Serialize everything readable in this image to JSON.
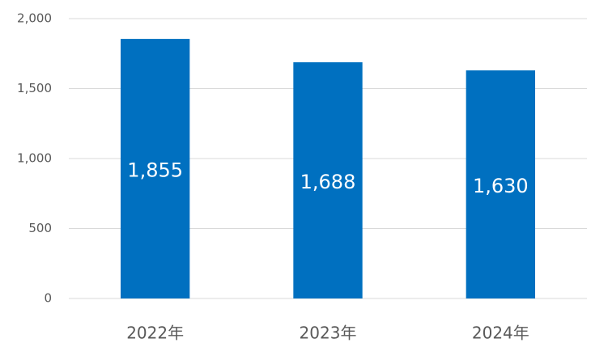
{
  "chart_data": {
    "type": "bar",
    "categories": [
      "2022年",
      "2023年",
      "2024年"
    ],
    "values": [
      1855,
      1688,
      1630
    ],
    "value_labels": [
      "1,855",
      "1,688",
      "1,630"
    ],
    "color": "#0070c0",
    "ylim": [
      0,
      2000
    ],
    "yticks": [
      0,
      500,
      {
        "value": 1000,
        "label": "1,000"
      },
      {
        "value": 1500,
        "label": "1,500"
      },
      {
        "value": 2000,
        "label": "2,000"
      }
    ],
    "grid": true
  }
}
